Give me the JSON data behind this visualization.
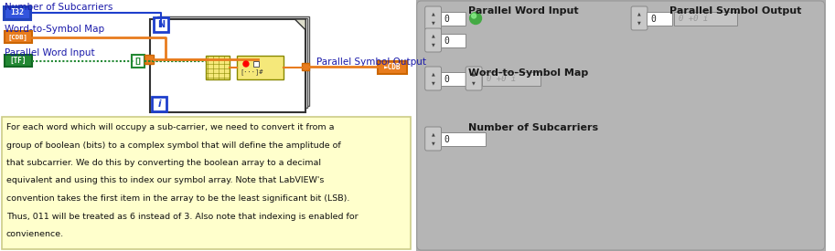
{
  "orange": "#e87c1e",
  "blue": "#1e3fcc",
  "green": "#22aa22",
  "blue_dark": "#1a1a99",
  "note_bg": "#ffffcc",
  "note_border": "#cccc88",
  "note_text_lines": [
    "For each word which will occupy a sub-carrier, we need to convert it from a",
    "group of boolean (bits) to a complex symbol that will define the amplitude of",
    "that subcarrier. We do this by converting the boolean array to a decimal",
    "equivalent and using this to index our symbol array. Note that LabVIEW's",
    "convention takes the first item in the array to be the least significant bit (LSB).",
    "Thus, 011 will be treated as 6 instead of 3. Also note that indexing is enabled for",
    "convienence."
  ],
  "lv_label_color": "#1a1aaa",
  "right_bg": "#aaaaaa",
  "right_inner_bg": "#bbbbbb",
  "title_bold_color": "#1a1a1a",
  "spinner_bg": "#c0c0c0",
  "input_bg": "#ffffff",
  "readonly_bg": "#cccccc",
  "led_green": "#44aa44",
  "label_fs": 7.5,
  "note_fs": 6.8
}
